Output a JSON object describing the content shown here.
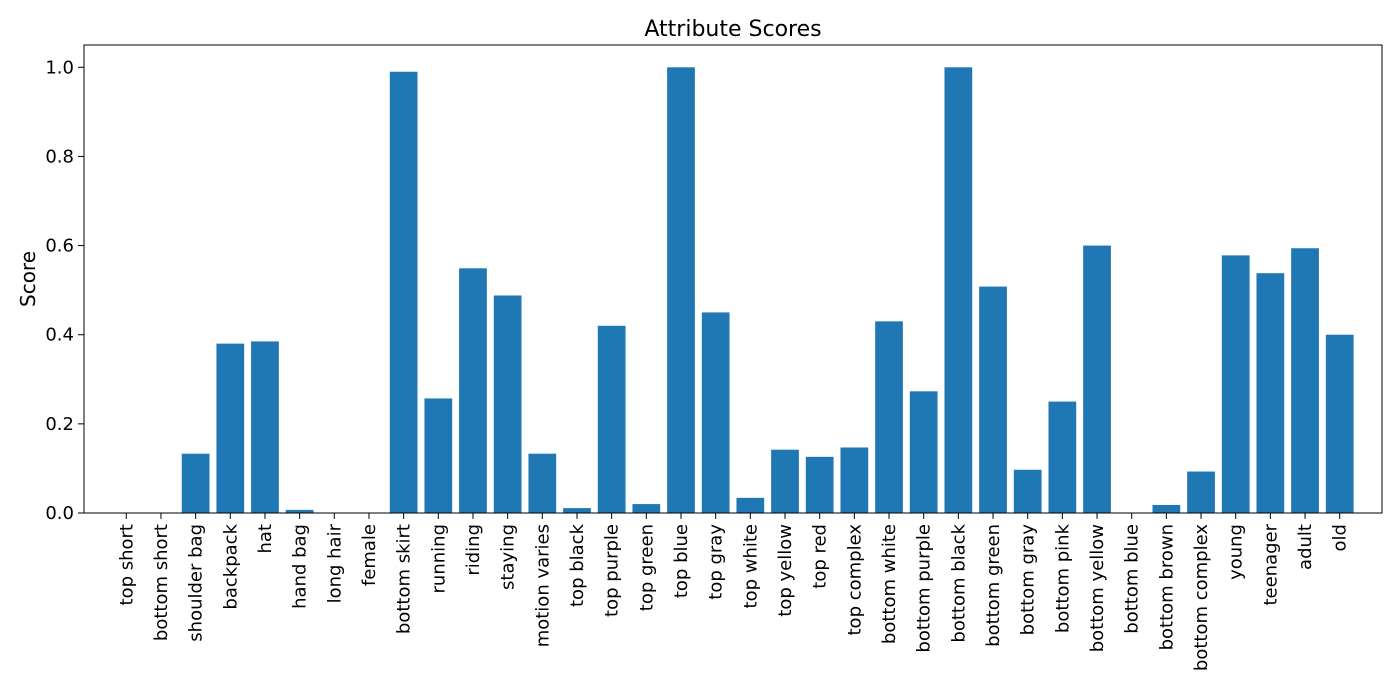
{
  "chart_data": {
    "type": "bar",
    "title": "Attribute Scores",
    "xlabel": "",
    "ylabel": "Score",
    "ylim": [
      0,
      1.05
    ],
    "yticks": [
      0.0,
      0.2,
      0.4,
      0.6,
      0.8,
      1.0
    ],
    "ytick_labels": [
      "0.0",
      "0.2",
      "0.4",
      "0.6",
      "0.8",
      "1.0"
    ],
    "grid": false,
    "legend": "none",
    "bar_color": "#1f77b4",
    "categories": [
      "top short",
      "bottom short",
      "shoulder bag",
      "backpack",
      "hat",
      "hand bag",
      "long hair",
      "female",
      "bottom skirt",
      "running",
      "riding",
      "staying",
      "motion varies",
      "top black",
      "top purple",
      "top green",
      "top blue",
      "top gray",
      "top white",
      "top yellow",
      "top red",
      "top complex",
      "bottom white",
      "bottom purple",
      "bottom black",
      "bottom green",
      "bottom gray",
      "bottom pink",
      "bottom yellow",
      "bottom blue",
      "bottom brown",
      "bottom complex",
      "young",
      "teenager",
      "adult",
      "old"
    ],
    "values": [
      0.0,
      0.0,
      0.133,
      0.38,
      0.385,
      0.007,
      0.0,
      0.0,
      0.99,
      0.257,
      0.549,
      0.488,
      0.133,
      0.011,
      0.42,
      0.02,
      1.0,
      0.45,
      0.034,
      0.142,
      0.126,
      0.147,
      0.43,
      0.273,
      1.0,
      0.508,
      0.097,
      0.25,
      0.6,
      0.0,
      0.018,
      0.093,
      0.578,
      0.538,
      0.594,
      0.4
    ]
  }
}
